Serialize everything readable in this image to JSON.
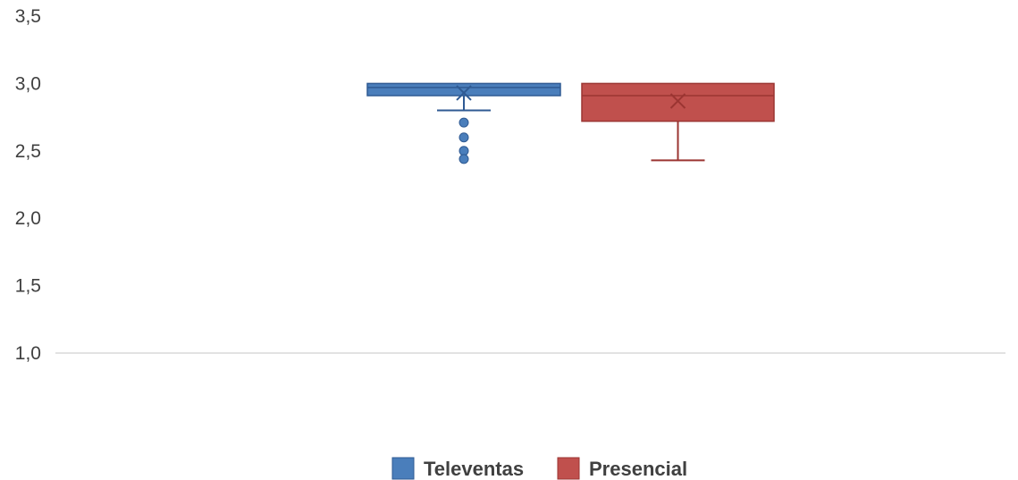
{
  "chart_data": {
    "type": "boxplot",
    "title": "",
    "xlabel": "",
    "ylabel": "",
    "ylim": [
      1.0,
      3.5
    ],
    "yticks": [
      1.0,
      1.5,
      2.0,
      2.5,
      3.0,
      3.5
    ],
    "ytick_labels": [
      "1,0",
      "1,5",
      "2,0",
      "2,5",
      "3,0",
      "3,5"
    ],
    "grid": false,
    "legend_position": "bottom",
    "series": [
      {
        "name": "Televentas",
        "color": "#4a7ebb",
        "stroke": "#2f5a93",
        "min": 2.8,
        "q1": 2.91,
        "median": 2.97,
        "q3": 3.0,
        "max": 3.0,
        "mean": 2.93,
        "outliers": [
          2.71,
          2.6,
          2.5,
          2.44
        ]
      },
      {
        "name": "Presencial",
        "color": "#c0504d",
        "stroke": "#9b3532",
        "min": 2.43,
        "q1": 2.72,
        "median": 2.91,
        "q3": 3.0,
        "max": 3.0,
        "mean": 2.87,
        "outliers": []
      }
    ]
  }
}
